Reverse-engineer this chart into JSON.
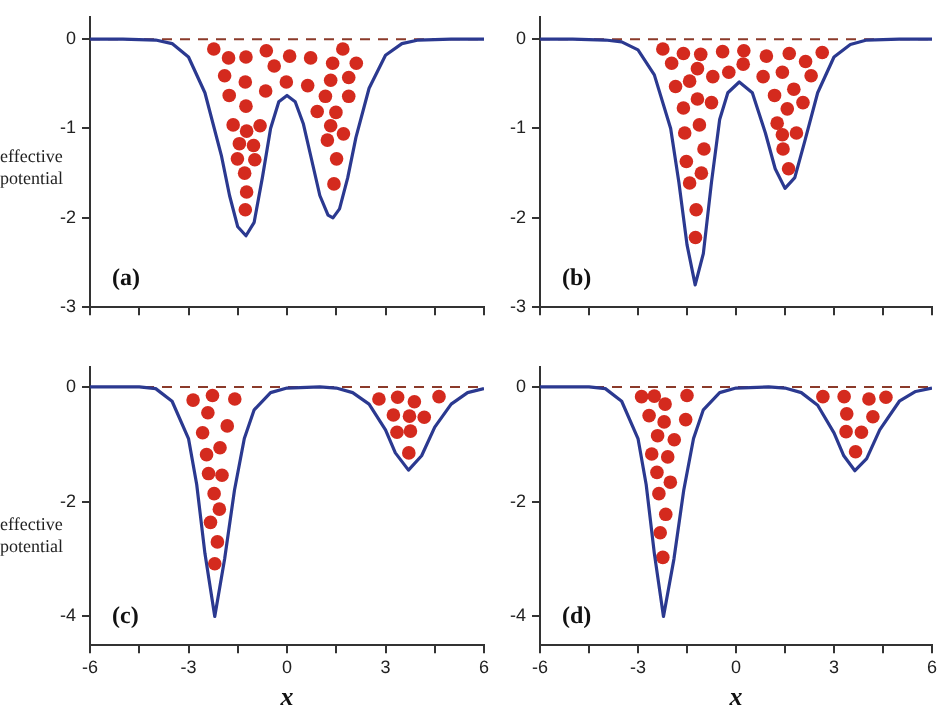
{
  "chart_data": [
    {
      "type": "line",
      "ylabel": "effective potential",
      "xlim": [
        -6,
        6
      ],
      "xticks": [
        -6,
        {
          "value": -4.5,
          "label": null
        },
        -3,
        {
          "value": -1.5,
          "label": null
        },
        0,
        {
          "value": 1.5,
          "label": null
        },
        3,
        {
          "value": 4.5,
          "label": null
        },
        6
      ],
      "ylim": [
        -3,
        0.25
      ],
      "yticks": [
        0,
        -1,
        -2,
        -3
      ],
      "tick_labels": "y",
      "legend": false,
      "annotations": [
        "(a)"
      ],
      "ref_lines": [
        {
          "axis": "y",
          "value": 0,
          "color": "#8b3a2a",
          "line_style": "dashed"
        }
      ],
      "series": [
        {
          "type": "line",
          "color": "#2b3990",
          "marker": "none",
          "x": [
            -6,
            -5,
            -4,
            -3.5,
            -3,
            -2.5,
            -2,
            -1.75,
            -1.5,
            -1.25,
            -1,
            -0.75,
            -0.5,
            -0.25,
            0,
            0.25,
            0.5,
            0.75,
            1,
            1.25,
            1.4,
            1.6,
            1.85,
            2.1,
            2.5,
            3,
            3.5,
            4,
            5,
            6
          ],
          "values": [
            0,
            0,
            -0.01,
            -0.05,
            -0.2,
            -0.6,
            -1.3,
            -1.75,
            -2.1,
            -2.2,
            -2.05,
            -1.55,
            -1.0,
            -0.7,
            -0.63,
            -0.7,
            -0.95,
            -1.35,
            -1.75,
            -1.97,
            -2.0,
            -1.9,
            -1.55,
            -1.1,
            -0.55,
            -0.18,
            -0.05,
            -0.01,
            0,
            0
          ]
        },
        {
          "type": "scatter",
          "color": "#d42a1e",
          "marker": "circle",
          "x": [
            -2.23,
            -1.78,
            -1.25,
            -0.63,
            0.08,
            0.72,
            1.39,
            1.7,
            2.11,
            -1.9,
            -1.27,
            -0.39,
            -0.02,
            0.63,
            1.33,
            1.88,
            -1.76,
            -0.65,
            1.17,
            1.88,
            -1.25,
            0.92,
            1.49,
            -1.64,
            -1.23,
            -0.82,
            1.33,
            1.72,
            -1.45,
            -1.02,
            1.23,
            -1.51,
            -0.98,
            1.51,
            -1.29,
            -1.23,
            1.43,
            -1.27
          ],
          "values": [
            -0.11,
            -0.21,
            -0.2,
            -0.13,
            -0.19,
            -0.21,
            -0.27,
            -0.11,
            -0.27,
            -0.41,
            -0.48,
            -0.3,
            -0.48,
            -0.52,
            -0.46,
            -0.43,
            -0.63,
            -0.58,
            -0.64,
            -0.64,
            -0.75,
            -0.81,
            -0.82,
            -0.96,
            -1.03,
            -0.97,
            -0.97,
            -1.06,
            -1.17,
            -1.19,
            -1.13,
            -1.34,
            -1.35,
            -1.34,
            -1.5,
            -1.71,
            -1.62,
            -1.91
          ]
        }
      ]
    },
    {
      "type": "line",
      "xlim": [
        -6,
        6
      ],
      "xticks": [
        -6,
        {
          "value": -4.5,
          "label": null
        },
        -3,
        {
          "value": -1.5,
          "label": null
        },
        0,
        {
          "value": 1.5,
          "label": null
        },
        3,
        {
          "value": 4.5,
          "label": null
        },
        6
      ],
      "ylim": [
        -3,
        0.25
      ],
      "yticks": [
        0,
        -1,
        -2,
        -3
      ],
      "tick_labels": "y",
      "legend": false,
      "annotations": [
        "(b)"
      ],
      "ref_lines": [
        {
          "axis": "y",
          "value": 0,
          "color": "#8b3a2a",
          "line_style": "dashed"
        }
      ],
      "series": [
        {
          "type": "line",
          "color": "#2b3990",
          "marker": "none",
          "x": [
            -6,
            -5,
            -4,
            -3.5,
            -3,
            -2.5,
            -2,
            -1.75,
            -1.5,
            -1.25,
            -1,
            -0.75,
            -0.5,
            -0.25,
            0.1,
            0.5,
            0.9,
            1.2,
            1.5,
            1.8,
            2.1,
            2.5,
            3,
            3.5,
            4,
            5,
            6
          ],
          "values": [
            0,
            0,
            -0.01,
            -0.03,
            -0.12,
            -0.4,
            -1.0,
            -1.6,
            -2.3,
            -2.75,
            -2.4,
            -1.6,
            -0.9,
            -0.6,
            -0.48,
            -0.6,
            -1.05,
            -1.45,
            -1.67,
            -1.55,
            -1.15,
            -0.6,
            -0.2,
            -0.06,
            -0.01,
            0,
            0
          ]
        },
        {
          "type": "scatter",
          "color": "#d42a1e",
          "marker": "circle",
          "x": [
            -2.24,
            -1.61,
            -1.08,
            -0.41,
            0.24,
            0.93,
            1.63,
            2.13,
            2.64,
            -1.97,
            -1.18,
            -0.71,
            -0.22,
            0.22,
            0.83,
            1.42,
            2.3,
            -1.85,
            -1.42,
            1.77,
            -1.61,
            -1.18,
            -0.75,
            1.18,
            2.05,
            1.57,
            -1.57,
            -1.12,
            1.26,
            1.85,
            -0.98,
            1.42,
            1.44,
            -1.52,
            -1.06,
            1.61,
            -1.42,
            -1.22,
            -1.24
          ],
          "values": [
            -0.11,
            -0.16,
            -0.17,
            -0.14,
            -0.13,
            -0.19,
            -0.16,
            -0.25,
            -0.15,
            -0.27,
            -0.33,
            -0.42,
            -0.37,
            -0.28,
            -0.42,
            -0.37,
            -0.41,
            -0.53,
            -0.47,
            -0.56,
            -0.77,
            -0.67,
            -0.71,
            -0.63,
            -0.71,
            -0.78,
            -1.05,
            -0.96,
            -0.94,
            -1.05,
            -1.23,
            -1.07,
            -1.23,
            -1.37,
            -1.5,
            -1.45,
            -1.61,
            -1.91,
            -2.22
          ]
        }
      ]
    },
    {
      "type": "line",
      "ylabel": "effective potential",
      "xlabel": "x",
      "xlim": [
        -6,
        6
      ],
      "xticks": [
        -6,
        {
          "value": -4.5,
          "label": null
        },
        -3,
        {
          "value": -1.5,
          "label": null
        },
        0,
        {
          "value": 1.5,
          "label": null
        },
        3,
        {
          "value": 4.5,
          "label": null
        },
        6
      ],
      "ylim": [
        -4.5,
        0.35
      ],
      "yticks": [
        0,
        -2,
        -4
      ],
      "legend": false,
      "annotations": [
        "(c)"
      ],
      "ref_lines": [
        {
          "axis": "y",
          "value": 0,
          "color": "#8b3a2a",
          "line_style": "dashed"
        }
      ],
      "series": [
        {
          "type": "line",
          "color": "#2b3990",
          "marker": "none",
          "x": [
            -6,
            -5,
            -4.5,
            -4,
            -3.5,
            -3,
            -2.75,
            -2.5,
            -2.2,
            -1.9,
            -1.6,
            -1.3,
            -1,
            -0.5,
            0,
            1,
            1.5,
            2,
            2.5,
            3,
            3.3,
            3.7,
            4.1,
            4.5,
            5,
            5.5,
            6
          ],
          "values": [
            0,
            0,
            0,
            -0.03,
            -0.25,
            -0.9,
            -1.7,
            -2.9,
            -4.0,
            -3.0,
            -1.8,
            -0.9,
            -0.4,
            -0.1,
            -0.02,
            0,
            -0.02,
            -0.1,
            -0.3,
            -0.75,
            -1.15,
            -1.45,
            -1.2,
            -0.7,
            -0.3,
            -0.1,
            -0.03
          ]
        },
        {
          "type": "scatter",
          "color": "#d42a1e",
          "marker": "circle",
          "x": [
            -2.86,
            -2.27,
            -1.59,
            -2.41,
            -1.82,
            -2.57,
            -2.04,
            -2.45,
            -1.98,
            -2.39,
            -2.22,
            -2.06,
            -2.33,
            -2.12,
            -2.2,
            2.8,
            3.37,
            3.88,
            4.63,
            3.24,
            3.73,
            4.18,
            3.35,
            3.76,
            3.71
          ],
          "values": [
            -0.23,
            -0.15,
            -0.21,
            -0.45,
            -0.68,
            -0.8,
            -1.06,
            -1.18,
            -1.54,
            -1.51,
            -1.86,
            -2.13,
            -2.36,
            -2.7,
            -3.08,
            -0.21,
            -0.18,
            -0.26,
            -0.17,
            -0.49,
            -0.51,
            -0.53,
            -0.79,
            -0.77,
            -1.15
          ]
        }
      ]
    },
    {
      "type": "line",
      "xlabel": "x",
      "xlim": [
        -6,
        6
      ],
      "xticks": [
        -6,
        {
          "value": -4.5,
          "label": null
        },
        -3,
        {
          "value": -1.5,
          "label": null
        },
        0,
        {
          "value": 1.5,
          "label": null
        },
        3,
        {
          "value": 4.5,
          "label": null
        },
        6
      ],
      "ylim": [
        -4.5,
        0.35
      ],
      "yticks": [
        0,
        -2,
        -4
      ],
      "legend": false,
      "annotations": [
        "(d)"
      ],
      "ref_lines": [
        {
          "axis": "y",
          "value": 0,
          "color": "#8b3a2a",
          "line_style": "dashed"
        }
      ],
      "series": [
        {
          "type": "line",
          "color": "#2b3990",
          "marker": "none",
          "x": [
            -6,
            -5,
            -4.5,
            -4,
            -3.5,
            -3,
            -2.75,
            -2.5,
            -2.22,
            -1.9,
            -1.6,
            -1.3,
            -1,
            -0.5,
            0,
            1,
            1.5,
            2,
            2.5,
            3,
            3.3,
            3.64,
            4,
            4.4,
            5,
            5.5,
            6
          ],
          "values": [
            0,
            0,
            0,
            -0.03,
            -0.25,
            -0.9,
            -1.7,
            -2.9,
            -4.0,
            -3.0,
            -1.8,
            -0.9,
            -0.4,
            -0.1,
            -0.02,
            0,
            -0.02,
            -0.1,
            -0.32,
            -0.8,
            -1.2,
            -1.46,
            -1.25,
            -0.75,
            -0.25,
            -0.08,
            -0.02
          ]
        },
        {
          "type": "scatter",
          "color": "#d42a1e",
          "marker": "circle",
          "x": [
            -2.89,
            -2.5,
            -2.17,
            -1.5,
            -2.66,
            -2.2,
            -1.54,
            -2.4,
            -1.89,
            -2.58,
            -2.09,
            -2.42,
            -2.01,
            -2.36,
            -2.15,
            -2.32,
            -2.24,
            2.66,
            3.31,
            4.07,
            4.59,
            3.39,
            4.19,
            3.37,
            3.84,
            3.66
          ],
          "values": [
            -0.17,
            -0.16,
            -0.3,
            -0.15,
            -0.5,
            -0.61,
            -0.57,
            -0.85,
            -0.92,
            -1.17,
            -1.22,
            -1.49,
            -1.66,
            -1.86,
            -2.22,
            -2.54,
            -2.97,
            -0.17,
            -0.17,
            -0.21,
            -0.18,
            -0.47,
            -0.52,
            -0.78,
            -0.79,
            -1.13
          ]
        }
      ]
    }
  ]
}
